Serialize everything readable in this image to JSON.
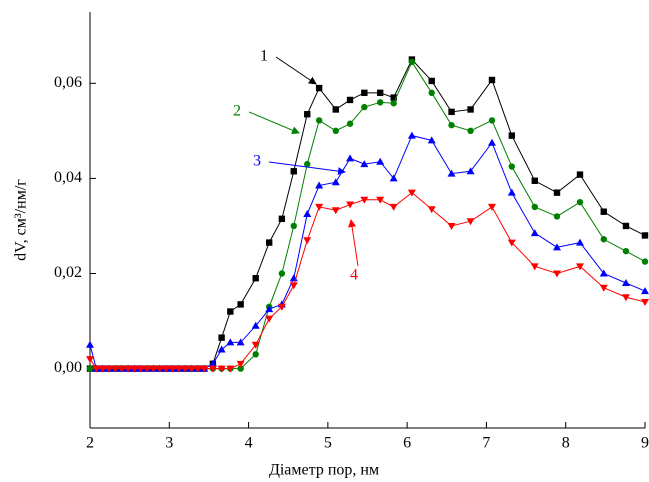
{
  "chart_data": {
    "type": "line",
    "x": [
      2.0,
      2.08,
      2.16,
      2.24,
      2.32,
      2.4,
      2.48,
      2.56,
      2.64,
      2.72,
      2.8,
      2.88,
      2.96,
      3.04,
      3.12,
      3.2,
      3.28,
      3.36,
      3.44,
      3.55,
      3.66,
      3.77,
      3.9,
      4.09,
      4.26,
      4.42,
      4.57,
      4.74,
      4.89,
      5.1,
      5.28,
      5.46,
      5.66,
      5.83,
      6.06,
      6.31,
      6.56,
      6.8,
      7.07,
      7.32,
      7.61,
      7.89,
      8.18,
      8.48,
      8.76,
      9.0
    ],
    "series": [
      {
        "name": "1",
        "color": "#000000",
        "marker": "square",
        "values": [
          0,
          0,
          0,
          0,
          0,
          0,
          0,
          0,
          0,
          0,
          0,
          0,
          0,
          0,
          0,
          0,
          0,
          0,
          0,
          0.001,
          0.0065,
          0.012,
          0.0135,
          0.019,
          0.0265,
          0.0315,
          0.0415,
          0.0535,
          0.059,
          0.0545,
          0.0565,
          0.058,
          0.058,
          0.057,
          0.065,
          0.0605,
          0.054,
          0.0545,
          0.0607,
          0.049,
          0.0395,
          0.037,
          0.0408,
          0.033,
          0.03,
          0.028
        ]
      },
      {
        "name": "2",
        "color": "#008000",
        "marker": "circle",
        "values": [
          0,
          0,
          0,
          0,
          0,
          0,
          0,
          0,
          0,
          0,
          0,
          0,
          0,
          0,
          0,
          0,
          0,
          0,
          0,
          0,
          0,
          0,
          0,
          0.003,
          0.013,
          0.02,
          0.03,
          0.043,
          0.0522,
          0.05,
          0.0515,
          0.055,
          0.056,
          0.0558,
          0.0645,
          0.058,
          0.0512,
          0.05,
          0.0522,
          0.0425,
          0.034,
          0.032,
          0.035,
          0.0272,
          0.0247,
          0.0225
        ]
      },
      {
        "name": "3",
        "color": "#0000ff",
        "marker": "triangle-up",
        "values": [
          0.005,
          0,
          0,
          0,
          0,
          0,
          0,
          0,
          0,
          0,
          0,
          0,
          0,
          0,
          0,
          0,
          0,
          0,
          0,
          0.001,
          0.004,
          0.0055,
          0.0055,
          0.009,
          0.0125,
          0.0135,
          0.019,
          0.0325,
          0.0385,
          0.0392,
          0.0442,
          0.043,
          0.0435,
          0.04,
          0.049,
          0.048,
          0.041,
          0.0415,
          0.0475,
          0.037,
          0.0285,
          0.0255,
          0.0265,
          0.02,
          0.018,
          0.0163
        ]
      },
      {
        "name": "4",
        "color": "#ff0000",
        "marker": "triangle-down",
        "values": [
          0.002,
          0,
          0,
          0,
          0,
          0,
          0,
          0,
          0,
          0,
          0,
          0,
          0,
          0,
          0,
          0,
          0,
          0,
          0,
          0,
          0,
          0,
          0.001,
          0.005,
          0.0105,
          0.013,
          0.0175,
          0.027,
          0.034,
          0.0333,
          0.0345,
          0.0355,
          0.0355,
          0.034,
          0.037,
          0.0335,
          0.03,
          0.031,
          0.034,
          0.0265,
          0.0215,
          0.02,
          0.0215,
          0.017,
          0.015,
          0.014
        ]
      }
    ],
    "x_label": "Діаметр пор, нм",
    "y_label": "dV, см³/нм/г",
    "xlim": [
      2,
      9
    ],
    "xticks": [
      2,
      3,
      4,
      5,
      6,
      7,
      8,
      9
    ],
    "ylim": [
      -0.0125,
      0.075
    ],
    "yticks": [
      {
        "value": 0,
        "label": "0,00"
      },
      {
        "value": 0.02,
        "label": "0,02"
      },
      {
        "value": 0.04,
        "label": "0,04"
      },
      {
        "value": 0.06,
        "label": "0,06"
      }
    ],
    "grid": false
  }
}
